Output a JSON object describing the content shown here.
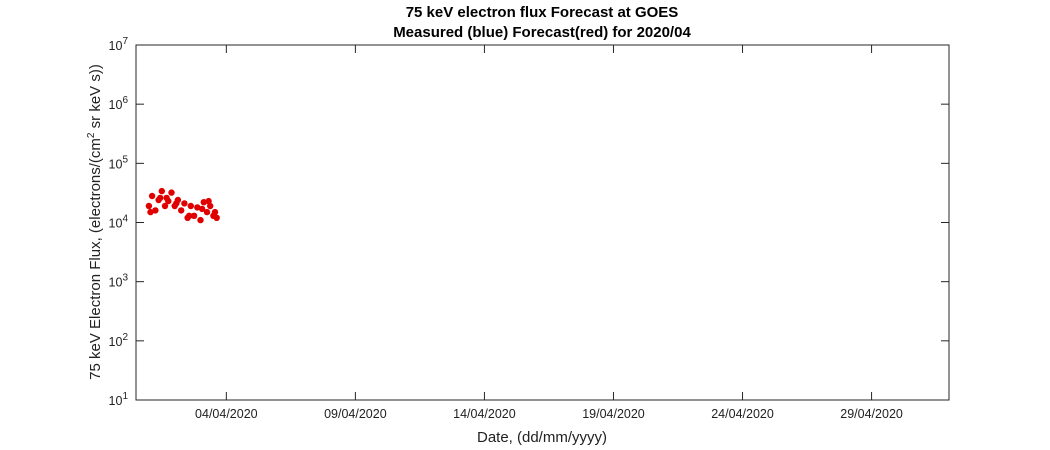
{
  "chart_data": {
    "type": "scatter",
    "title": "75 keV electron flux Forecast at GOES",
    "subtitle": "Measured (blue) Forecast(red) for 2020/04",
    "xlabel": "Date, (dd/mm/yyyy)",
    "ylabel": {
      "prefix": "75 keV Electron Flux, (electrons/(cm",
      "superscript": "2",
      "suffix": " sr keV s))"
    },
    "x_scale": "date",
    "xlim": [
      "2020-03-31T12:00",
      "2020-05-02T00:00"
    ],
    "xticks": [
      {
        "date": "2020-04-04",
        "label": "04/04/2020"
      },
      {
        "date": "2020-04-09",
        "label": "09/04/2020"
      },
      {
        "date": "2020-04-14",
        "label": "14/04/2020"
      },
      {
        "date": "2020-04-19",
        "label": "19/04/2020"
      },
      {
        "date": "2020-04-24",
        "label": "24/04/2020"
      },
      {
        "date": "2020-04-29",
        "label": "29/04/2020"
      }
    ],
    "y_scale": "log",
    "ylim": [
      10,
      10000000
    ],
    "yticks": [
      {
        "value": 10,
        "base": "10",
        "exp": "1"
      },
      {
        "value": 100,
        "base": "10",
        "exp": "2"
      },
      {
        "value": 1000,
        "base": "10",
        "exp": "3"
      },
      {
        "value": 10000,
        "base": "10",
        "exp": "4"
      },
      {
        "value": 100000,
        "base": "10",
        "exp": "5"
      },
      {
        "value": 1000000,
        "base": "10",
        "exp": "6"
      },
      {
        "value": 10000000,
        "base": "10",
        "exp": "7"
      }
    ],
    "grid": false,
    "legend": "none",
    "series": [
      {
        "color": "#e00000",
        "marker": "dot",
        "points": [
          {
            "x": "2020-04-01T00:00",
            "y": 19000
          },
          {
            "x": "2020-04-01T03:00",
            "y": 28000
          },
          {
            "x": "2020-04-01T06:00",
            "y": 16000
          },
          {
            "x": "2020-04-01T09:00",
            "y": 24000
          },
          {
            "x": "2020-04-01T12:00",
            "y": 34000
          },
          {
            "x": "2020-04-01T15:00",
            "y": 19000
          },
          {
            "x": "2020-04-01T18:00",
            "y": 23000
          },
          {
            "x": "2020-04-01T21:00",
            "y": 32000
          },
          {
            "x": "2020-04-02T00:00",
            "y": 19000
          },
          {
            "x": "2020-04-02T03:00",
            "y": 24000
          },
          {
            "x": "2020-04-02T06:00",
            "y": 16000
          },
          {
            "x": "2020-04-02T09:00",
            "y": 21000
          },
          {
            "x": "2020-04-02T12:00",
            "y": 12000
          },
          {
            "x": "2020-04-02T15:00",
            "y": 19000
          },
          {
            "x": "2020-04-02T18:00",
            "y": 13000
          },
          {
            "x": "2020-04-02T21:00",
            "y": 18000
          },
          {
            "x": "2020-04-03T00:00",
            "y": 11000
          },
          {
            "x": "2020-04-03T03:00",
            "y": 22000
          },
          {
            "x": "2020-04-03T06:00",
            "y": 15000
          },
          {
            "x": "2020-04-03T09:00",
            "y": 19000
          },
          {
            "x": "2020-04-03T12:00",
            "y": 13000
          },
          {
            "x": "2020-04-03T15:00",
            "y": 12000
          },
          {
            "x": "2020-04-01T01:30",
            "y": 15000
          },
          {
            "x": "2020-04-01T10:30",
            "y": 26000
          },
          {
            "x": "2020-04-02T01:30",
            "y": 21000
          },
          {
            "x": "2020-04-02T13:30",
            "y": 13000
          },
          {
            "x": "2020-04-03T01:30",
            "y": 17000
          },
          {
            "x": "2020-04-03T07:30",
            "y": 23000
          },
          {
            "x": "2020-04-03T13:30",
            "y": 15000
          },
          {
            "x": "2020-04-01T16:30",
            "y": 26000
          }
        ]
      }
    ]
  }
}
